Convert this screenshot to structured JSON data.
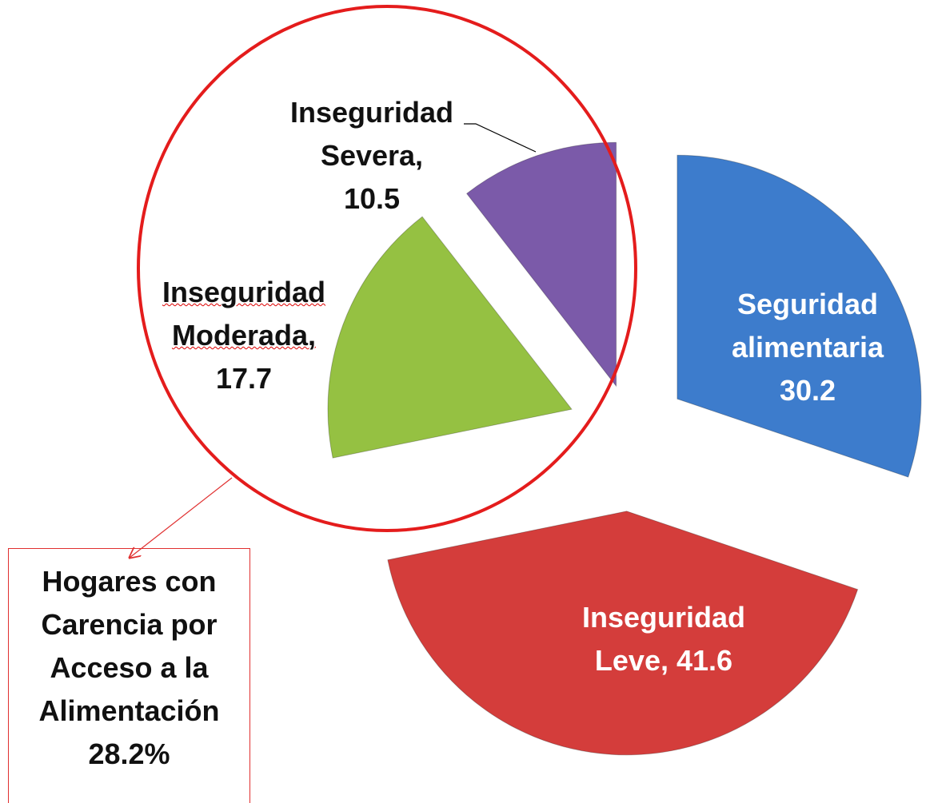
{
  "chart_data": {
    "type": "pie",
    "categories": [
      "Seguridad alimentaria",
      "Inseguridad Leve,",
      "Inseguridad Moderada,",
      "Inseguridad Severa,"
    ],
    "values": [
      30.2,
      41.6,
      17.7,
      10.5
    ],
    "colors": [
      "#3d7ccc",
      "#d43d3b",
      "#95c142",
      "#7b5aa9"
    ],
    "annotation": "Hogares con Carencia por Acceso  a la Alimentación 28.2%"
  }
}
